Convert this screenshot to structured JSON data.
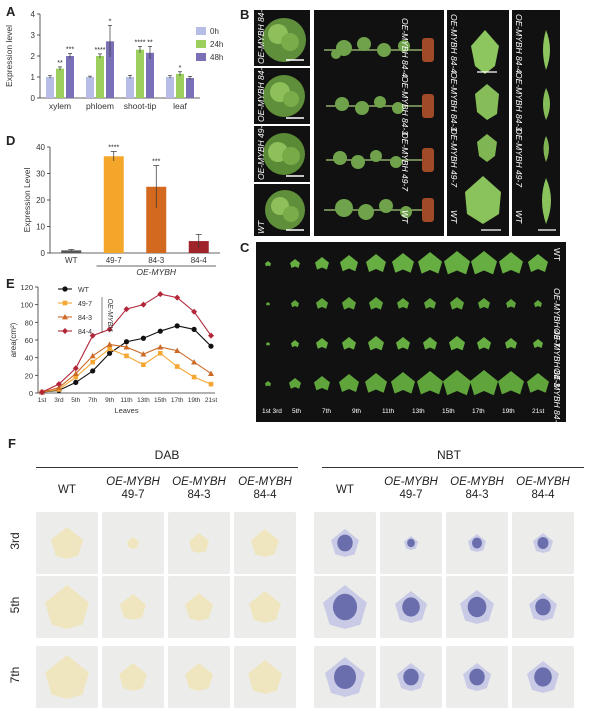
{
  "panels": {
    "A": "A",
    "B": "B",
    "C": "C",
    "D": "D",
    "E": "E",
    "F": "F"
  },
  "colors": {
    "h0": "#b7bde6",
    "h24": "#9ccf5e",
    "h48": "#7a70b8",
    "wt_bar": "#555555",
    "bar497": "#f4a62a",
    "bar843": "#d2691e",
    "bar844": "#a0252a",
    "line_wt": "#111111",
    "line_497": "#f5a733",
    "line_843": "#cc6a28",
    "line_844": "#b3263a"
  },
  "chart_data": [
    {
      "type": "bar",
      "panel": "A",
      "ylabel": "Expression  level",
      "ylim": [
        0,
        4
      ],
      "yticks": [
        "0",
        "1",
        "2",
        "3",
        "4"
      ],
      "categories": [
        "xylem",
        "phloem",
        "shoot-tip",
        "leaf"
      ],
      "legend": [
        "0h",
        "24h",
        "48h"
      ],
      "series": [
        {
          "name": "0h",
          "values": [
            1.0,
            1.0,
            1.0,
            1.0
          ],
          "err": [
            0.06,
            0.04,
            0.08,
            0.06
          ]
        },
        {
          "name": "24h",
          "values": [
            1.4,
            2.0,
            2.3,
            1.15
          ],
          "err": [
            0.08,
            0.1,
            0.15,
            0.1
          ]
        },
        {
          "name": "48h",
          "values": [
            2.0,
            2.7,
            2.15,
            0.95
          ],
          "err": [
            0.12,
            0.75,
            0.3,
            0.08
          ]
        }
      ],
      "sig": [
        [
          "",
          "**",
          "***"
        ],
        [
          "",
          "****",
          "*"
        ],
        [
          "",
          "****",
          "**"
        ],
        [
          "",
          "*",
          ""
        ]
      ]
    },
    {
      "type": "bar",
      "panel": "D",
      "ylabel": "Expression Level",
      "ylim": [
        0,
        40
      ],
      "yticks": [
        "0",
        "10",
        "20",
        "30",
        "40"
      ],
      "categories": [
        "WT",
        "49-7",
        "84-3",
        "84-4"
      ],
      "group_label": "OE-MYBH",
      "values": [
        1.0,
        36.5,
        25.0,
        4.5
      ],
      "err": [
        0.3,
        1.8,
        8.0,
        2.5
      ],
      "sig": [
        "",
        "****",
        "***",
        ""
      ]
    },
    {
      "type": "line",
      "panel": "E",
      "ylabel": "area(cm²)",
      "xlabel": "Leaves",
      "ylim": [
        0,
        120
      ],
      "yticks": [
        "0",
        "20",
        "40",
        "60",
        "80",
        "100",
        "120"
      ],
      "categories": [
        "1st",
        "3rd",
        "5th",
        "7th",
        "9th",
        "11th",
        "13th",
        "15th",
        "17th",
        "19th",
        "21st"
      ],
      "legend_group": "OE-MYBH",
      "series": [
        {
          "name": "WT",
          "values": [
            1,
            3,
            12,
            25,
            45,
            58,
            62,
            70,
            76,
            72,
            53
          ]
        },
        {
          "name": "49-7",
          "values": [
            1,
            4,
            18,
            35,
            50,
            42,
            32,
            45,
            30,
            18,
            10
          ]
        },
        {
          "name": "84-3",
          "values": [
            1,
            6,
            22,
            42,
            55,
            52,
            44,
            52,
            48,
            35,
            22
          ]
        },
        {
          "name": "84-4",
          "values": [
            1,
            10,
            28,
            65,
            72,
            95,
            100,
            112,
            108,
            92,
            65
          ]
        }
      ]
    }
  ],
  "B": {
    "small_labels": [
      "OE-MYBH 84-4",
      "OE-MYBH 84-3",
      "OE-MYBH 49-7",
      "WT"
    ],
    "plant_labels": [
      "OE-MYBH 84-4",
      "OE-MYBH 84-3",
      "OE-MYBH 49-7",
      "WT"
    ],
    "leaf_labels": [
      "OE-MYBH 84-4",
      "OE-MYBH 84-3",
      "OE-MYBH 49-7",
      "WT"
    ],
    "leaf2_labels": [
      "OE-MYBH 84-4",
      "OE-MYBH 84-3",
      "OE-MYBH 49-7",
      "WT"
    ]
  },
  "C": {
    "rows": [
      "WT",
      "OE-MYBH 49-7",
      "OE-MYBH 84-3",
      "OE-MYBH 84-4"
    ],
    "bottom_labels": [
      "1st 3rd",
      "5th",
      "7th",
      "9th",
      "11th",
      "13th",
      "15th",
      "17th",
      "19th",
      "21st"
    ]
  },
  "F": {
    "section_dab": "DAB",
    "section_nbt": "NBT",
    "col_heads": [
      {
        "l1": "WT",
        "l2": ""
      },
      {
        "l1": "OE-MYBH",
        "l2": "49-7"
      },
      {
        "l1": "OE-MYBH",
        "l2": "84-3"
      },
      {
        "l1": "OE-MYBH",
        "l2": "84-4"
      },
      {
        "l1": "WT",
        "l2": ""
      },
      {
        "l1": "OE-MYBH",
        "l2": "49-7"
      },
      {
        "l1": "OE-MYBH",
        "l2": "84-3"
      },
      {
        "l1": "OE-MYBH",
        "l2": "84-4"
      }
    ],
    "rows": [
      "3rd",
      "5th",
      "7th"
    ]
  }
}
